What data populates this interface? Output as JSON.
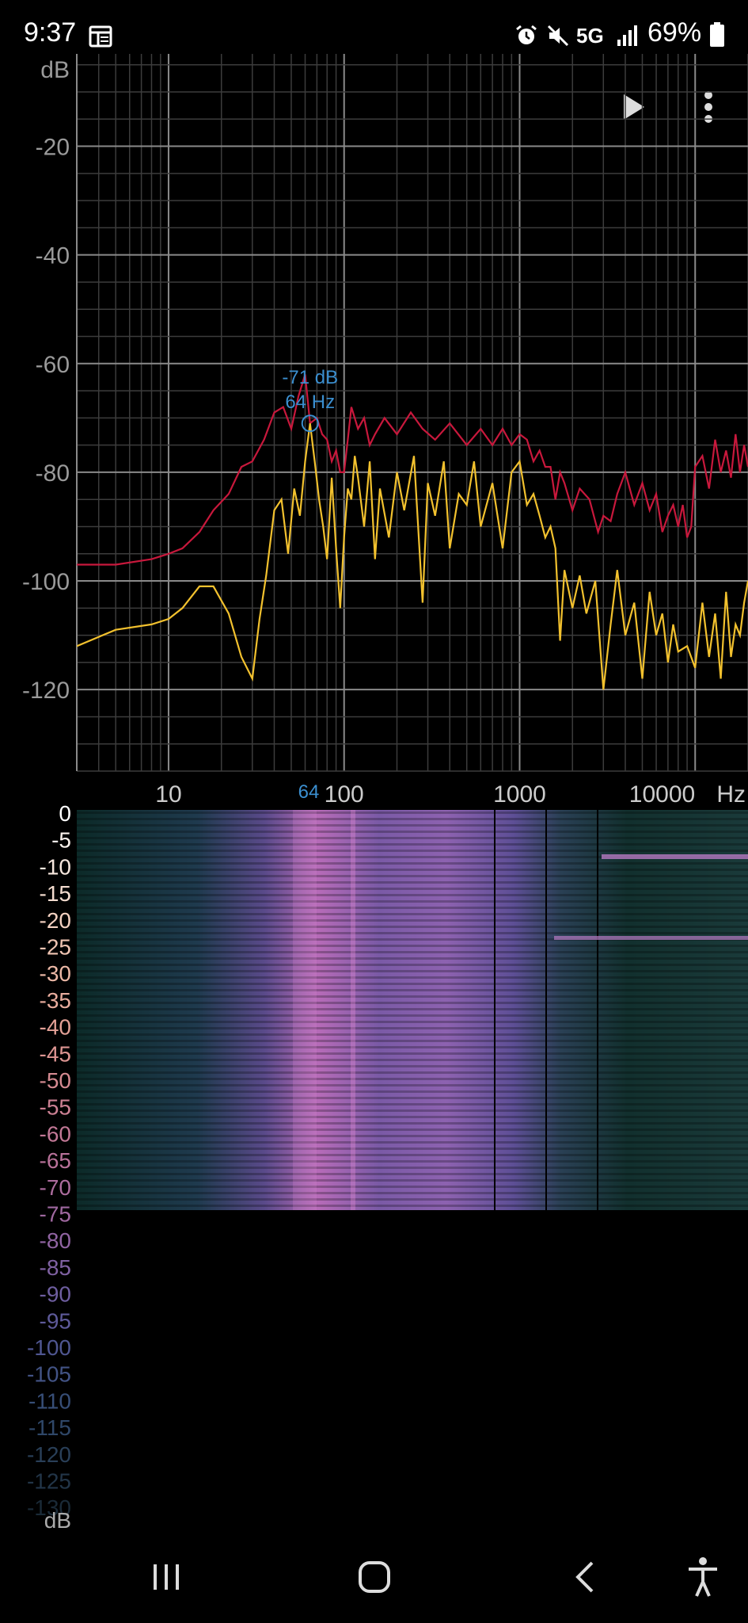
{
  "status_bar": {
    "time": "9:37",
    "network": "5G",
    "battery": "69%",
    "icons": [
      "notes-icon",
      "alarm-icon",
      "mute-icon",
      "signal-icon",
      "battery-icon"
    ]
  },
  "toolbar": {
    "icons": [
      "play-icon",
      "more-vert-icon"
    ]
  },
  "spectrum": {
    "y_unit": "dB",
    "x_unit": "Hz",
    "y_ticks": [
      "-20",
      "-40",
      "-60",
      "-80",
      "-100",
      "-120"
    ],
    "x_ticks": [
      "10",
      "100",
      "1000",
      "10000"
    ],
    "cursor_freq": "64",
    "peak_db_label": "-71 dB",
    "peak_hz_label": "64 Hz"
  },
  "spectrogram": {
    "unit": "dB",
    "scale_labels": [
      "0",
      "-5",
      "-10",
      "-15",
      "-20",
      "-25",
      "-30",
      "-35",
      "-40",
      "-45",
      "-50",
      "-55",
      "-60",
      "-65",
      "-70",
      "-75",
      "-80",
      "-85",
      "-90",
      "-95",
      "-100",
      "-105",
      "-110",
      "-115",
      "-120",
      "-125",
      "-130"
    ],
    "label_colors": [
      "#ffffff",
      "#fbf3ee",
      "#f7e7de",
      "#f4dccf",
      "#f2d0c0",
      "#efc4b2",
      "#ecb8a6",
      "#e8ac9d",
      "#e3a096",
      "#dd9592",
      "#d58a91",
      "#cc8093",
      "#c27896",
      "#b87199",
      "#ac6c9d",
      "#9f68a0",
      "#9064a2",
      "#7f61a2",
      "#6e5ea0",
      "#5e5a9a",
      "#4f5691",
      "#425385",
      "#374e77",
      "#2f4768",
      "#293f58",
      "#223548",
      "#1a2a37"
    ]
  },
  "chart_data": {
    "type": "line",
    "xscale": "log",
    "xlim": [
      3,
      20000
    ],
    "ylim": [
      -135,
      -3
    ],
    "ylabel": "dB",
    "xlabel": "Hz",
    "series": [
      {
        "color": "#c8183c",
        "x": [
          3,
          5,
          8,
          10,
          12,
          15,
          18,
          22,
          26,
          30,
          35,
          40,
          45,
          50,
          55,
          60,
          64,
          70,
          75,
          80,
          85,
          90,
          95,
          100,
          105,
          110,
          120,
          130,
          140,
          150,
          170,
          200,
          240,
          280,
          330,
          400,
          500,
          600,
          700,
          800,
          900,
          1000,
          1100,
          1200,
          1300,
          1400,
          1500,
          1600,
          1700,
          1800,
          2000,
          2200,
          2500,
          2800,
          3000,
          3300,
          3600,
          4000,
          4500,
          5000,
          5500,
          6000,
          6500,
          7000,
          7500,
          8000,
          8500,
          9000,
          9500,
          10000,
          11000,
          12000,
          13000,
          14000,
          15000,
          16000,
          17000,
          18000,
          19000,
          20000
        ],
        "y": [
          -97,
          -97,
          -96,
          -95,
          -94,
          -91,
          -87,
          -84,
          -79,
          -78,
          -74,
          -69,
          -68,
          -72,
          -66,
          -62,
          -71,
          -70,
          -73,
          -74,
          -78,
          -76,
          -80,
          -80,
          -74,
          -68,
          -72,
          -70,
          -75,
          -73,
          -70,
          -73,
          -69,
          -72,
          -74,
          -71,
          -75,
          -72,
          -75,
          -72,
          -75,
          -73,
          -74,
          -78,
          -76,
          -79,
          -79,
          -85,
          -80,
          -82,
          -87,
          -83,
          -85,
          -91,
          -88,
          -89,
          -84,
          -80,
          -86,
          -82,
          -87,
          -84,
          -91,
          -88,
          -86,
          -90,
          -86,
          -92,
          -90,
          -79,
          -77,
          -83,
          -74,
          -80,
          -76,
          -81,
          -73,
          -80,
          -75,
          -79
        ]
      },
      {
        "color": "#f2c12e",
        "x": [
          3,
          5,
          8,
          10,
          12,
          15,
          18,
          22,
          26,
          30,
          33,
          36,
          40,
          44,
          48,
          52,
          56,
          60,
          64,
          68,
          72,
          76,
          80,
          85,
          90,
          95,
          100,
          105,
          110,
          115,
          120,
          130,
          140,
          150,
          160,
          180,
          200,
          220,
          250,
          280,
          300,
          330,
          370,
          400,
          450,
          500,
          550,
          600,
          700,
          800,
          900,
          1000,
          1100,
          1200,
          1300,
          1400,
          1500,
          1600,
          1700,
          1800,
          2000,
          2200,
          2400,
          2700,
          3000,
          3300,
          3600,
          4000,
          4500,
          5000,
          5500,
          6000,
          6500,
          7000,
          7500,
          8000,
          9000,
          10000,
          11000,
          12000,
          13000,
          14000,
          15000,
          16000,
          17000,
          18000,
          19000,
          20000
        ],
        "y": [
          -112,
          -109,
          -108,
          -107,
          -105,
          -101,
          -101,
          -106,
          -114,
          -118,
          -107,
          -99,
          -87,
          -85,
          -95,
          -83,
          -88,
          -78,
          -71,
          -78,
          -85,
          -90,
          -96,
          -81,
          -94,
          -105,
          -92,
          -83,
          -85,
          -77,
          -81,
          -90,
          -78,
          -96,
          -83,
          -92,
          -80,
          -87,
          -77,
          -104,
          -82,
          -88,
          -78,
          -94,
          -84,
          -86,
          -78,
          -90,
          -82,
          -94,
          -80,
          -78,
          -86,
          -84,
          -88,
          -92,
          -90,
          -94,
          -111,
          -98,
          -105,
          -99,
          -106,
          -100,
          -120,
          -108,
          -98,
          -110,
          -104,
          -118,
          -102,
          -110,
          -106,
          -115,
          -108,
          -113,
          -112,
          -116,
          -104,
          -114,
          -106,
          -118,
          -102,
          -114,
          -108,
          -110,
          -104,
          -100
        ]
      }
    ],
    "peak": {
      "x": 64,
      "y": -71
    }
  }
}
